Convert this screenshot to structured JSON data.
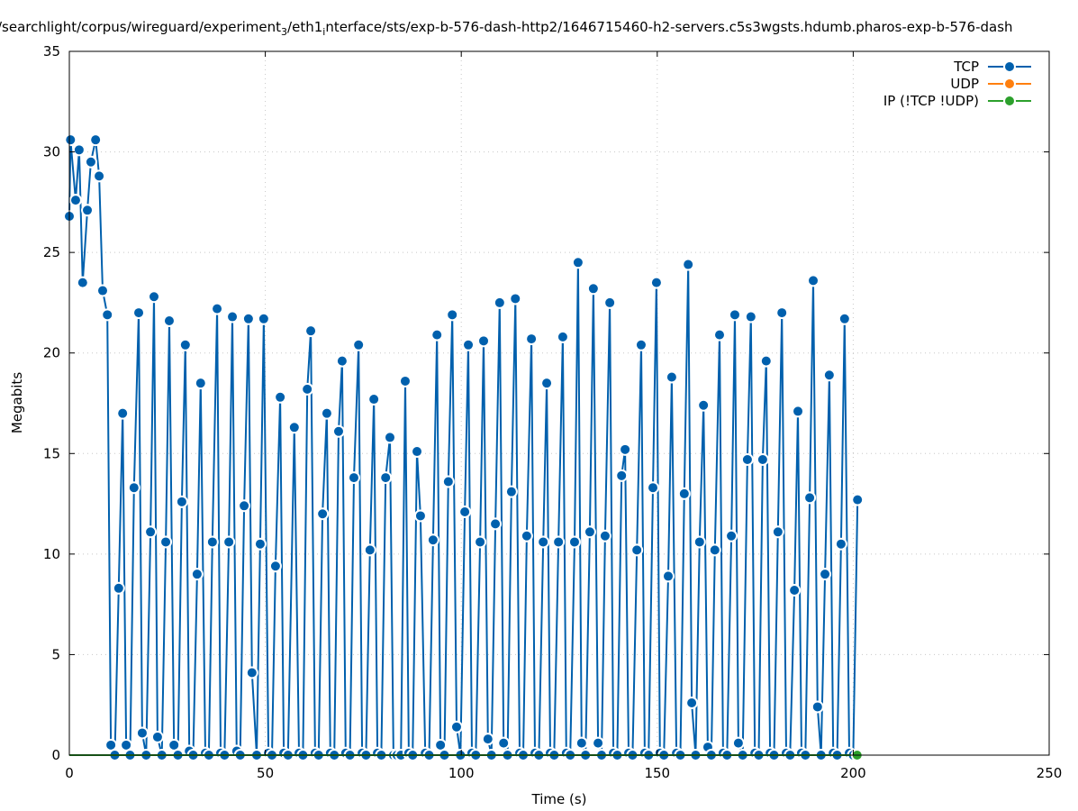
{
  "chart_data": {
    "type": "line",
    "title_parts": [
      {
        "text": "/searchlight/corpus/wireguard/experiment",
        "sub": false
      },
      {
        "text": "3",
        "sub": true
      },
      {
        "text": "/eth1",
        "sub": false
      },
      {
        "text": "i",
        "sub": true
      },
      {
        "text": "nterface/sts/exp-b-576-dash-http2/1646715460-h2-servers.c5s3wgsts.hdumb.pharos-exp-b-576-dash",
        "sub": false
      }
    ],
    "xlabel": "Time (s)",
    "ylabel": "Megabits",
    "xlim": [
      0,
      250
    ],
    "ylim": [
      0,
      35
    ],
    "xticks": [
      0,
      50,
      100,
      150,
      200,
      250
    ],
    "yticks": [
      0,
      5,
      10,
      15,
      20,
      25,
      30,
      35
    ],
    "grid": true,
    "legend_position": "top-right",
    "series": [
      {
        "name": "TCP",
        "color": "#0060ad",
        "points": [
          [
            0,
            26.8
          ],
          [
            0.3,
            30.6
          ],
          [
            1.6,
            27.6
          ],
          [
            2.5,
            30.1
          ],
          [
            3.4,
            23.5
          ],
          [
            4.6,
            27.1
          ],
          [
            5.5,
            29.5
          ],
          [
            6.7,
            30.6
          ],
          [
            7.6,
            28.8
          ],
          [
            8.5,
            23.1
          ],
          [
            9.7,
            21.9
          ],
          [
            10.6,
            0.5
          ],
          [
            11.6,
            0
          ],
          [
            12.6,
            8.3
          ],
          [
            13.6,
            17.0
          ],
          [
            14.5,
            0.5
          ],
          [
            15.5,
            0
          ],
          [
            16.5,
            13.3
          ],
          [
            17.7,
            22.0
          ],
          [
            18.6,
            1.1
          ],
          [
            19.6,
            0
          ],
          [
            20.7,
            11.1
          ],
          [
            21.6,
            22.8
          ],
          [
            22.5,
            0.9
          ],
          [
            23.6,
            0
          ],
          [
            24.6,
            10.6
          ],
          [
            25.5,
            21.6
          ],
          [
            26.7,
            0.5
          ],
          [
            27.7,
            0
          ],
          [
            28.7,
            12.6
          ],
          [
            29.6,
            20.4
          ],
          [
            30.6,
            0.2
          ],
          [
            31.6,
            0
          ],
          [
            32.6,
            9.0
          ],
          [
            33.5,
            18.5
          ],
          [
            34.7,
            0.1
          ],
          [
            35.6,
            0
          ],
          [
            36.5,
            10.6
          ],
          [
            37.7,
            22.2
          ],
          [
            38.6,
            0.1
          ],
          [
            39.6,
            0
          ],
          [
            40.7,
            10.6
          ],
          [
            41.6,
            21.8
          ],
          [
            42.7,
            0.2
          ],
          [
            43.6,
            0
          ],
          [
            44.6,
            12.4
          ],
          [
            45.7,
            21.7
          ],
          [
            46.6,
            4.1
          ],
          [
            47.8,
            0
          ],
          [
            48.7,
            10.5
          ],
          [
            49.6,
            21.7
          ],
          [
            50.8,
            0.1
          ],
          [
            51.7,
            0
          ],
          [
            52.6,
            9.4
          ],
          [
            53.8,
            17.8
          ],
          [
            54.7,
            0.1
          ],
          [
            55.8,
            0
          ],
          [
            57.4,
            16.3
          ],
          [
            58.6,
            0.1
          ],
          [
            59.6,
            0
          ],
          [
            60.7,
            18.2
          ],
          [
            61.6,
            21.1
          ],
          [
            62.7,
            0.1
          ],
          [
            63.6,
            0
          ],
          [
            64.6,
            12.0
          ],
          [
            65.7,
            17.0
          ],
          [
            66.6,
            0.1
          ],
          [
            67.6,
            0
          ],
          [
            68.7,
            16.1
          ],
          [
            69.6,
            19.6
          ],
          [
            70.5,
            0.1
          ],
          [
            71.6,
            0
          ],
          [
            72.6,
            13.8
          ],
          [
            73.8,
            20.4
          ],
          [
            74.7,
            0.1
          ],
          [
            75.7,
            0
          ],
          [
            76.7,
            10.2
          ],
          [
            77.7,
            17.7
          ],
          [
            78.6,
            0.1
          ],
          [
            79.6,
            0
          ],
          [
            80.7,
            13.8
          ],
          [
            81.8,
            15.8
          ],
          [
            82.7,
            0
          ],
          [
            83.6,
            0
          ],
          [
            84.6,
            0
          ],
          [
            85.7,
            18.6
          ],
          [
            86.6,
            0.1
          ],
          [
            87.6,
            0
          ],
          [
            88.7,
            15.1
          ],
          [
            89.6,
            11.9
          ],
          [
            90.8,
            0.1
          ],
          [
            91.8,
            0
          ],
          [
            92.8,
            10.7
          ],
          [
            93.8,
            20.9
          ],
          [
            94.7,
            0.5
          ],
          [
            95.7,
            0
          ],
          [
            96.7,
            13.6
          ],
          [
            97.7,
            21.9
          ],
          [
            98.8,
            1.4
          ],
          [
            99.8,
            0
          ],
          [
            100.9,
            12.1
          ],
          [
            101.8,
            20.4
          ],
          [
            102.7,
            0.1
          ],
          [
            103.7,
            0
          ],
          [
            104.8,
            10.6
          ],
          [
            105.7,
            20.6
          ],
          [
            106.8,
            0.8
          ],
          [
            107.7,
            0
          ],
          [
            108.7,
            11.5
          ],
          [
            109.8,
            22.5
          ],
          [
            110.8,
            0.6
          ],
          [
            111.8,
            0
          ],
          [
            112.8,
            13.1
          ],
          [
            113.8,
            22.7
          ],
          [
            114.9,
            0.1
          ],
          [
            115.8,
            0
          ],
          [
            116.7,
            10.9
          ],
          [
            117.9,
            20.7
          ],
          [
            118.8,
            0.1
          ],
          [
            119.8,
            0
          ],
          [
            120.9,
            10.6
          ],
          [
            121.8,
            18.5
          ],
          [
            122.7,
            0.1
          ],
          [
            123.7,
            0
          ],
          [
            124.8,
            10.6
          ],
          [
            125.9,
            20.8
          ],
          [
            126.8,
            0.1
          ],
          [
            127.8,
            0
          ],
          [
            128.9,
            10.6
          ],
          [
            129.8,
            24.5
          ],
          [
            130.7,
            0.6
          ],
          [
            131.7,
            0
          ],
          [
            132.8,
            11.1
          ],
          [
            133.7,
            23.2
          ],
          [
            134.9,
            0.6
          ],
          [
            135.8,
            0
          ],
          [
            136.7,
            10.9
          ],
          [
            137.9,
            22.5
          ],
          [
            138.8,
            0.1
          ],
          [
            139.8,
            0
          ],
          [
            140.9,
            13.9
          ],
          [
            141.8,
            15.2
          ],
          [
            142.7,
            0.1
          ],
          [
            143.7,
            0
          ],
          [
            144.8,
            10.2
          ],
          [
            145.9,
            20.4
          ],
          [
            146.8,
            0.1
          ],
          [
            147.8,
            0
          ],
          [
            148.9,
            13.3
          ],
          [
            149.8,
            23.5
          ],
          [
            150.7,
            0.1
          ],
          [
            151.7,
            0
          ],
          [
            152.8,
            8.9
          ],
          [
            153.7,
            18.8
          ],
          [
            154.9,
            0.1
          ],
          [
            155.9,
            0
          ],
          [
            156.9,
            13.0
          ],
          [
            157.9,
            24.4
          ],
          [
            158.8,
            2.6
          ],
          [
            159.8,
            0
          ],
          [
            160.8,
            10.6
          ],
          [
            161.8,
            17.4
          ],
          [
            162.9,
            0.4
          ],
          [
            163.8,
            0
          ],
          [
            164.7,
            10.2
          ],
          [
            165.9,
            20.9
          ],
          [
            166.8,
            0.1
          ],
          [
            167.8,
            0
          ],
          [
            168.9,
            10.9
          ],
          [
            169.8,
            21.9
          ],
          [
            170.7,
            0.6
          ],
          [
            171.8,
            0
          ],
          [
            173.0,
            14.7
          ],
          [
            173.9,
            21.8
          ],
          [
            174.9,
            0.1
          ],
          [
            175.9,
            0
          ],
          [
            176.9,
            14.7
          ],
          [
            177.8,
            19.6
          ],
          [
            178.8,
            0.1
          ],
          [
            179.8,
            0
          ],
          [
            180.8,
            11.1
          ],
          [
            181.8,
            22.0
          ],
          [
            182.9,
            0.1
          ],
          [
            183.9,
            0
          ],
          [
            185.0,
            8.2
          ],
          [
            185.9,
            17.1
          ],
          [
            186.8,
            0.1
          ],
          [
            187.8,
            0
          ],
          [
            188.9,
            12.8
          ],
          [
            189.8,
            23.6
          ],
          [
            190.9,
            2.4
          ],
          [
            191.8,
            0
          ],
          [
            192.8,
            9.0
          ],
          [
            193.9,
            18.9
          ],
          [
            194.9,
            0.1
          ],
          [
            195.9,
            0
          ],
          [
            196.9,
            10.5
          ],
          [
            197.8,
            21.7
          ],
          [
            199.0,
            0.1
          ],
          [
            200.0,
            0
          ],
          [
            201.1,
            12.7
          ]
        ]
      },
      {
        "name": "UDP",
        "color": "#ff7f0e",
        "points": []
      },
      {
        "name": "IP (!TCP  !UDP)",
        "color": "#2ca02c",
        "points": [
          [
            0,
            0
          ],
          [
            201.0,
            0
          ]
        ],
        "marker_last_only": true
      }
    ]
  }
}
